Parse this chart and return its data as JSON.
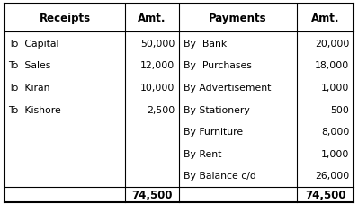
{
  "receipts": [
    {
      "label": "To  Capital",
      "amount": "50,000"
    },
    {
      "label": "To  Sales",
      "amount": "12,000"
    },
    {
      "label": "To  Kiran",
      "amount": "10,000"
    },
    {
      "label": "To  Kishore",
      "amount": "2,500"
    }
  ],
  "payments": [
    {
      "label": "By  Bank",
      "amount": "20,000"
    },
    {
      "label": "By  Purchases",
      "amount": "18,000"
    },
    {
      "label": "By Advertisement",
      "amount": "1,000"
    },
    {
      "label": "By Stationery",
      "amount": "500"
    },
    {
      "label": "By Furniture",
      "amount": "8,000"
    },
    {
      "label": "By Rent",
      "amount": "1,000"
    },
    {
      "label": "By Balance c/d",
      "amount": "26,000"
    }
  ],
  "receipt_total": "74,500",
  "payment_total": "74,500",
  "header_receipts": "Receipts",
  "header_amt": "Amt.",
  "header_payments": "Payments",
  "bg_color": "#ffffff",
  "border_color": "#000000",
  "header_fontsize": 8.5,
  "body_fontsize": 7.8
}
